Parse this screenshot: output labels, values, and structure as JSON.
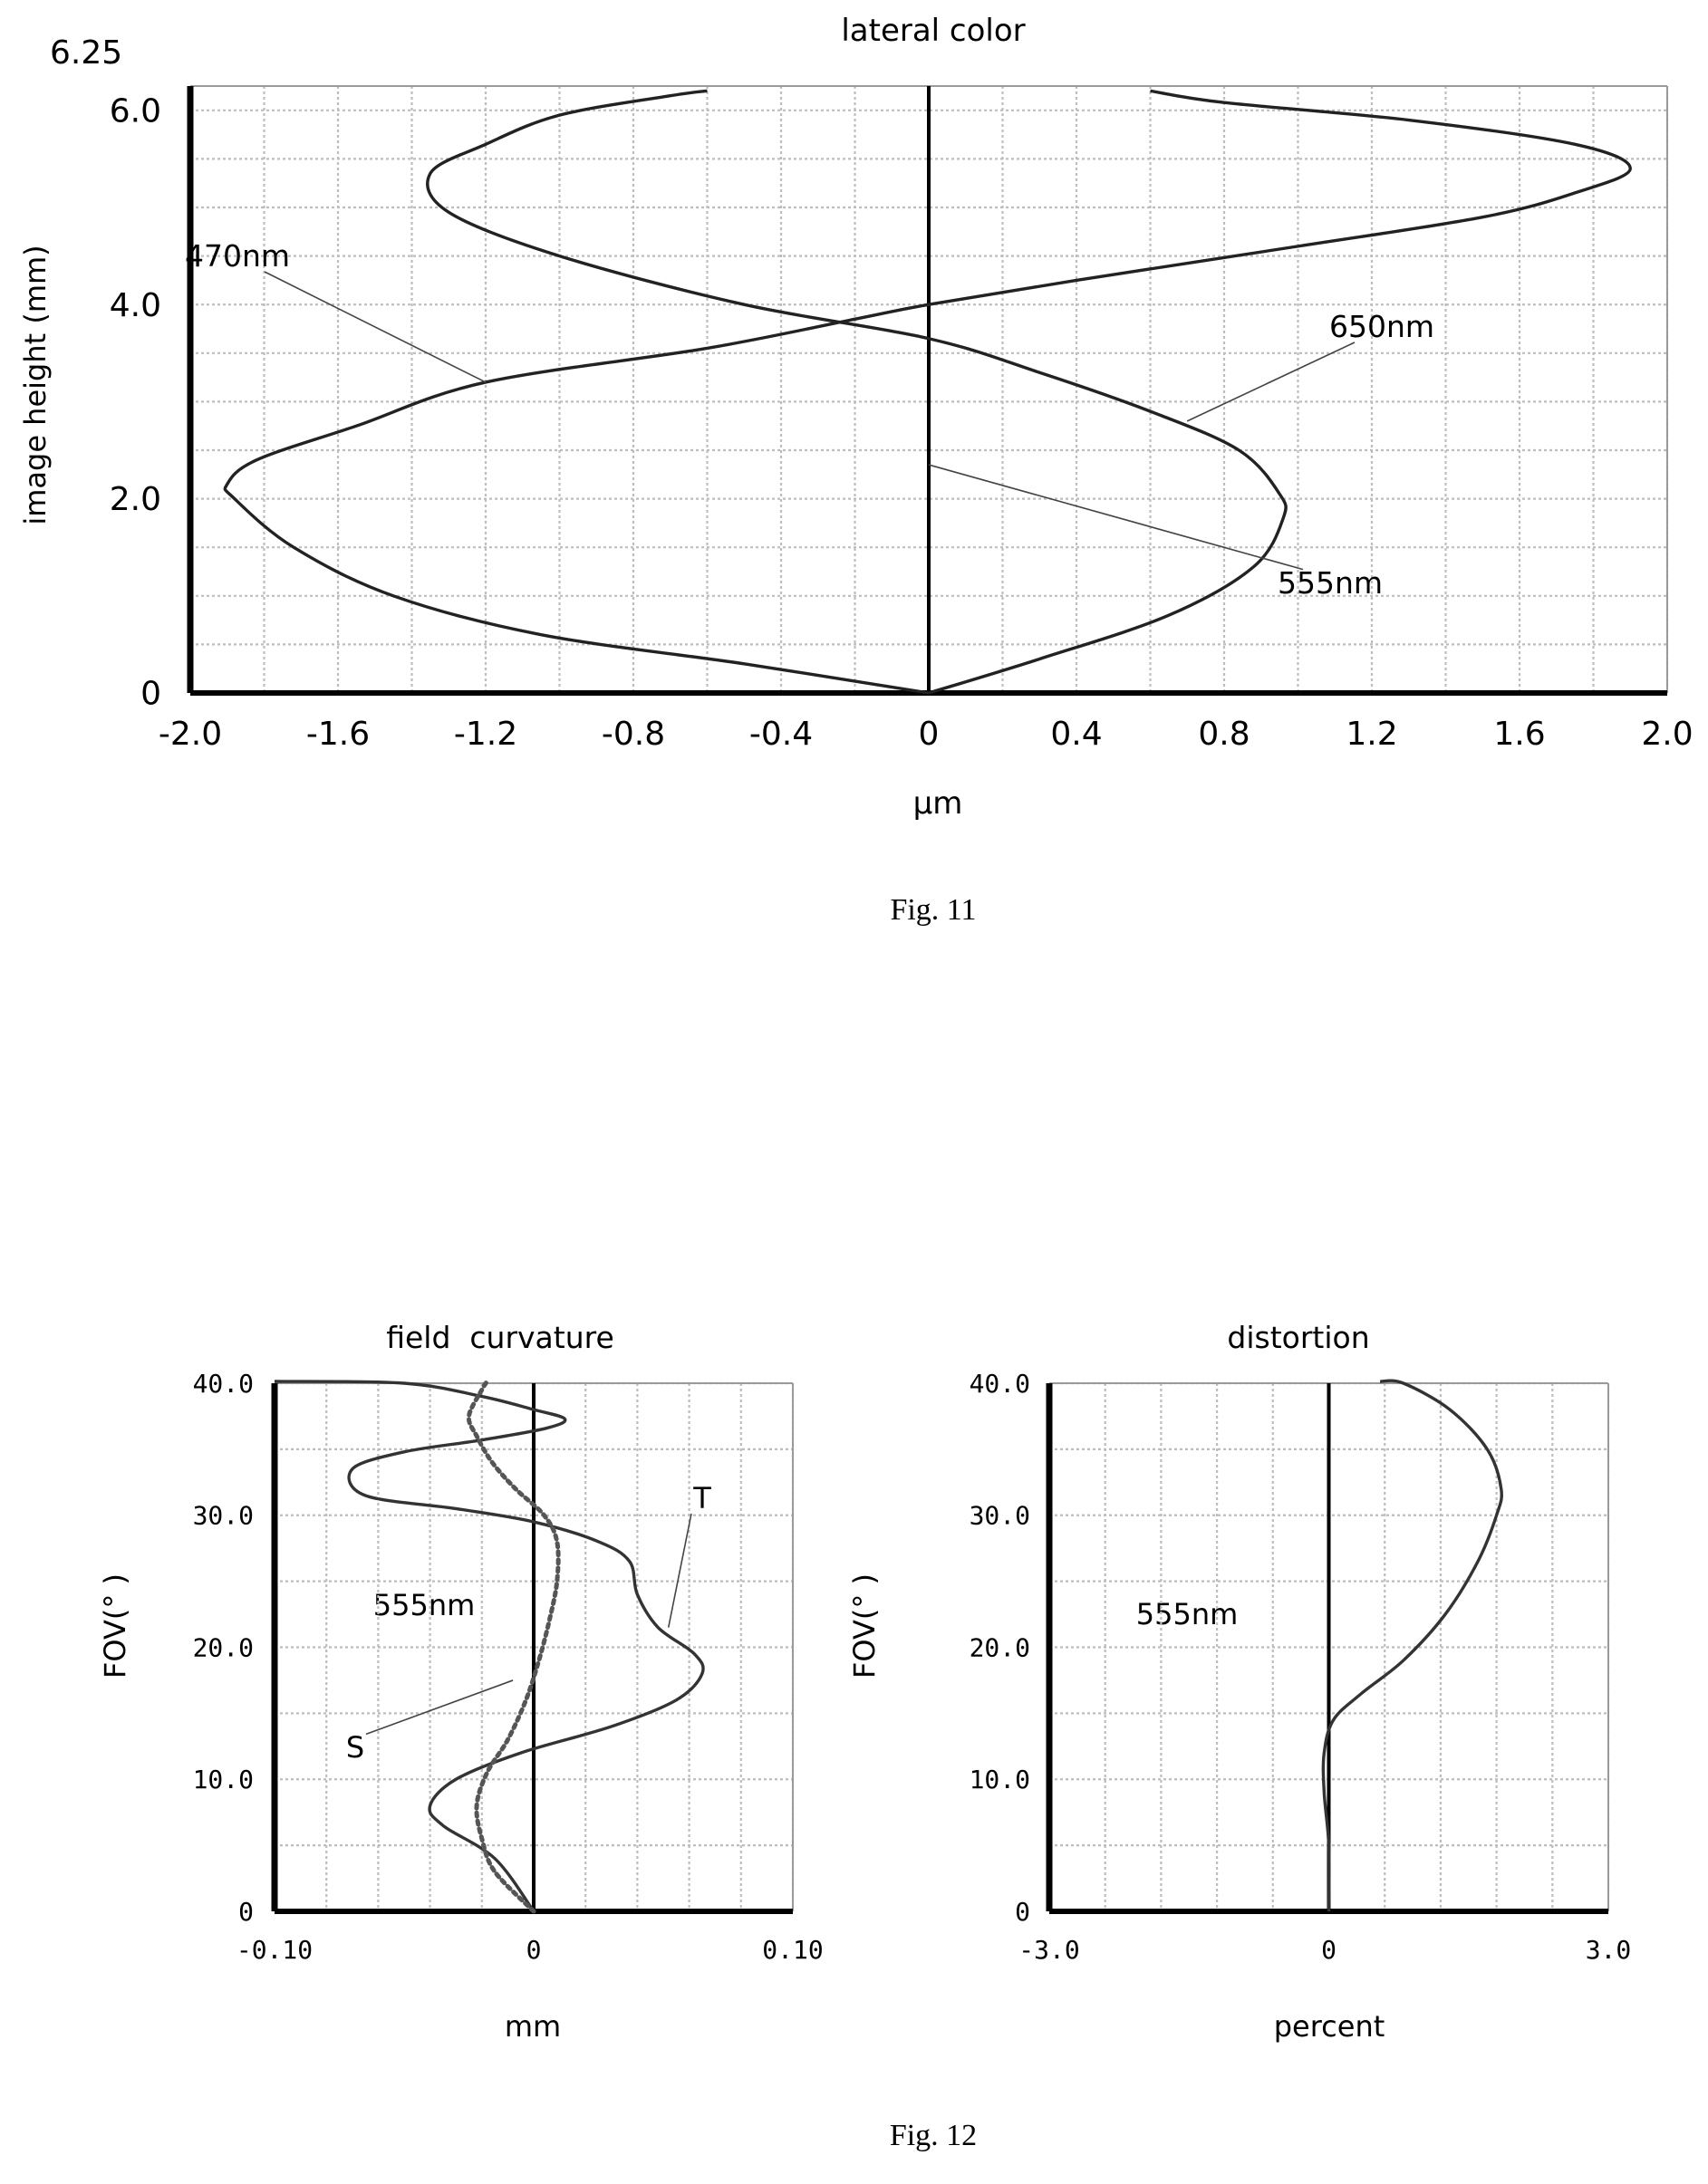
{
  "figures": {
    "fig11_caption": "Fig. 11",
    "fig12_caption": "Fig. 12"
  },
  "chart_data": [
    {
      "type": "line",
      "title": "lateral color",
      "xlabel": "μm",
      "ylabel": "image height (mm)",
      "y_max_label": "6.25",
      "xlim": [
        -2.0,
        2.0
      ],
      "ylim": [
        0,
        6.25
      ],
      "x_ticks": [
        -2.0,
        -1.6,
        -1.2,
        -0.8,
        -0.4,
        0,
        0.4,
        0.8,
        1.2,
        1.6,
        2.0
      ],
      "x_tick_labels": [
        "-2.0",
        "-1.6",
        "-1.2",
        "-0.8",
        "-0.4",
        "0",
        "0.4",
        "0.8",
        "1.2",
        "1.6",
        "2.0"
      ],
      "y_ticks": [
        0,
        2.0,
        4.0,
        6.0
      ],
      "y_tick_labels": [
        "0",
        "2.0",
        "4.0",
        "6.0"
      ],
      "grid": true,
      "annotations": [
        {
          "text": "470nm",
          "target": [
            -1.2,
            3.2
          ]
        },
        {
          "text": "650nm",
          "target": [
            0.7,
            2.8
          ]
        },
        {
          "text": "555nm",
          "target": [
            0.0,
            2.35
          ]
        }
      ],
      "series": [
        {
          "name": "470nm",
          "color": "#222222",
          "dash": false,
          "points": [
            [
              0.0,
              0.0
            ],
            [
              -0.5,
              0.3
            ],
            [
              -1.05,
              0.6
            ],
            [
              -1.45,
              1.0
            ],
            [
              -1.72,
              1.5
            ],
            [
              -1.88,
              2.0
            ],
            [
              -1.9,
              2.15
            ],
            [
              -1.82,
              2.4
            ],
            [
              -1.55,
              2.75
            ],
            [
              -1.2,
              3.2
            ],
            [
              -0.6,
              3.55
            ],
            [
              -0.2,
              3.85
            ],
            [
              0.0,
              4.0
            ],
            [
              0.4,
              4.25
            ],
            [
              1.0,
              4.6
            ],
            [
              1.5,
              4.9
            ],
            [
              1.75,
              5.15
            ],
            [
              1.9,
              5.4
            ],
            [
              1.75,
              5.65
            ],
            [
              1.3,
              5.9
            ],
            [
              0.8,
              6.08
            ],
            [
              0.6,
              6.2
            ]
          ]
        },
        {
          "name": "650nm",
          "color": "#222222",
          "dash": false,
          "points": [
            [
              0.0,
              0.0
            ],
            [
              0.3,
              0.35
            ],
            [
              0.65,
              0.8
            ],
            [
              0.88,
              1.3
            ],
            [
              0.96,
              1.8
            ],
            [
              0.95,
              2.05
            ],
            [
              0.84,
              2.5
            ],
            [
              0.6,
              2.9
            ],
            [
              0.3,
              3.3
            ],
            [
              0.0,
              3.65
            ],
            [
              -0.5,
              4.0
            ],
            [
              -1.0,
              4.5
            ],
            [
              -1.3,
              4.95
            ],
            [
              -1.35,
              5.35
            ],
            [
              -1.2,
              5.65
            ],
            [
              -1.0,
              5.95
            ],
            [
              -0.7,
              6.15
            ],
            [
              -0.6,
              6.2
            ]
          ]
        },
        {
          "name": "555nm",
          "color": "#222222",
          "dash": false,
          "points": [
            [
              0.0,
              0.0
            ],
            [
              0.0,
              6.25
            ]
          ]
        }
      ]
    },
    {
      "type": "line",
      "title": "field  curvature",
      "xlabel": "mm",
      "ylabel": "FOV(°  )",
      "xlim": [
        -0.1,
        0.1
      ],
      "ylim": [
        0,
        40
      ],
      "x_ticks": [
        -0.1,
        0,
        0.1
      ],
      "x_tick_labels": [
        "-0.10",
        "0",
        "0.10"
      ],
      "y_ticks": [
        0,
        10,
        20,
        30,
        40
      ],
      "y_tick_labels": [
        "0",
        "10.0",
        "20.0",
        "30.0",
        "40.0"
      ],
      "grid": true,
      "text_label": "555nm",
      "annotations": [
        {
          "text": "T",
          "target": [
            0.052,
            21.5
          ]
        },
        {
          "text": "S",
          "target": [
            -0.008,
            17.5
          ]
        }
      ],
      "series": [
        {
          "name": "T",
          "color": "#333333",
          "dash": false,
          "points": [
            [
              0.0,
              0.0
            ],
            [
              -0.015,
              4.0
            ],
            [
              -0.035,
              6.5
            ],
            [
              -0.04,
              8.0
            ],
            [
              -0.03,
              10.0
            ],
            [
              -0.005,
              12.0
            ],
            [
              0.03,
              14.0
            ],
            [
              0.055,
              16.0
            ],
            [
              0.065,
              18.0
            ],
            [
              0.062,
              19.5
            ],
            [
              0.048,
              21.5
            ],
            [
              0.04,
              24.0
            ],
            [
              0.037,
              26.5
            ],
            [
              0.025,
              28.0
            ],
            [
              0.0,
              29.5
            ],
            [
              -0.03,
              30.5
            ],
            [
              -0.065,
              31.5
            ],
            [
              -0.07,
              33.5
            ],
            [
              -0.05,
              34.8
            ],
            [
              -0.02,
              35.7
            ],
            [
              0.005,
              36.6
            ],
            [
              0.012,
              37.3
            ],
            [
              0.0,
              38.0
            ],
            [
              -0.02,
              39.0
            ],
            [
              -0.05,
              40.0
            ],
            [
              -0.1,
              41.0
            ]
          ]
        },
        {
          "name": "S",
          "color": "#555555",
          "dash": true,
          "points": [
            [
              0.0,
              0.0
            ],
            [
              -0.015,
              3.0
            ],
            [
              -0.02,
              5.5
            ],
            [
              -0.022,
              8.0
            ],
            [
              -0.018,
              10.5
            ],
            [
              -0.01,
              13.0
            ],
            [
              -0.003,
              16.0
            ],
            [
              0.002,
              19.0
            ],
            [
              0.006,
              22.0
            ],
            [
              0.009,
              25.0
            ],
            [
              0.009,
              28.0
            ],
            [
              0.004,
              30.0
            ],
            [
              -0.007,
              32.0
            ],
            [
              -0.016,
              34.0
            ],
            [
              -0.022,
              36.0
            ],
            [
              -0.025,
              37.5
            ],
            [
              -0.02,
              39.5
            ],
            [
              -0.018,
              41.0
            ]
          ]
        }
      ]
    },
    {
      "type": "line",
      "title": "distortion",
      "xlabel": "percent",
      "ylabel": "FOV(°  )",
      "xlim": [
        -3.0,
        3.0
      ],
      "ylim": [
        0,
        40
      ],
      "x_ticks": [
        -3.0,
        0,
        3.0
      ],
      "x_tick_labels": [
        "-3.0",
        "0",
        "3.0"
      ],
      "y_ticks": [
        0,
        10,
        20,
        30,
        40
      ],
      "y_tick_labels": [
        "0",
        "10.0",
        "20.0",
        "30.0",
        "40.0"
      ],
      "grid": true,
      "text_label": "555nm",
      "series": [
        {
          "name": "555nm",
          "color": "#333333",
          "dash": false,
          "points": [
            [
              0.0,
              0.0
            ],
            [
              0.0,
              5.0
            ],
            [
              -0.05,
              9.0
            ],
            [
              -0.05,
              12.0
            ],
            [
              0.05,
              14.5
            ],
            [
              0.35,
              16.5
            ],
            [
              0.8,
              19.0
            ],
            [
              1.25,
              22.5
            ],
            [
              1.6,
              26.5
            ],
            [
              1.8,
              30.0
            ],
            [
              1.85,
              32.0
            ],
            [
              1.7,
              35.0
            ],
            [
              1.3,
              38.0
            ],
            [
              0.8,
              40.0
            ],
            [
              0.55,
              41.0
            ]
          ]
        }
      ]
    }
  ]
}
